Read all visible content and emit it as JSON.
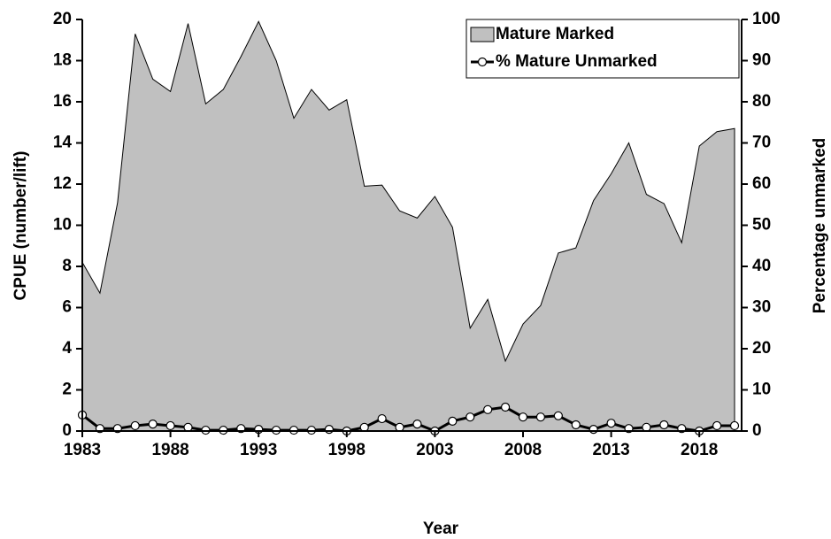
{
  "chart_data": {
    "type": "area",
    "x_label": "Year",
    "y_label": "CPUE (number/lift)",
    "y2_label": "Percentage unmarked",
    "x": [
      1983,
      1984,
      1985,
      1986,
      1987,
      1988,
      1989,
      1990,
      1991,
      1992,
      1993,
      1994,
      1995,
      1996,
      1997,
      1998,
      1999,
      2000,
      2001,
      2002,
      2003,
      2004,
      2005,
      2006,
      2007,
      2008,
      2009,
      2010,
      2011,
      2012,
      2013,
      2014,
      2015,
      2016,
      2017,
      2018,
      2019,
      2020
    ],
    "series": [
      {
        "name": "Mature Marked",
        "type": "area",
        "color": "#c0c0c0",
        "values": [
          8.2,
          6.7,
          11.1,
          19.3,
          17.1,
          16.5,
          19.8,
          15.9,
          16.6,
          18.2,
          19.9,
          18.0,
          15.2,
          16.6,
          15.6,
          16.1,
          11.9,
          11.95,
          10.7,
          10.35,
          11.4,
          9.9,
          5.0,
          6.4,
          3.4,
          5.2,
          6.1,
          8.65,
          8.9,
          11.2,
          12.5,
          14.0,
          11.5,
          11.05,
          9.15,
          13.85,
          14.55,
          14.7
        ]
      },
      {
        "name": "% Mature Unmarked",
        "type": "line",
        "axis": "y2",
        "color": "#000000",
        "values": [
          3.9,
          0.6,
          0.6,
          1.3,
          1.7,
          1.3,
          0.9,
          0.2,
          0.2,
          0.6,
          0.4,
          0.2,
          0.2,
          0.2,
          0.4,
          0,
          0.9,
          3.0,
          0.9,
          1.7,
          0,
          2.4,
          3.4,
          5.2,
          5.8,
          3.4,
          3.4,
          3.7,
          1.5,
          0.4,
          1.9,
          0.6,
          0.9,
          1.5,
          0.6,
          0,
          1.3,
          1.3
        ]
      }
    ],
    "xlim": [
      1983,
      2020.4
    ],
    "xticks": [
      1983,
      1988,
      1993,
      1998,
      2003,
      2008,
      2013,
      2018
    ],
    "ylim": [
      0,
      20
    ],
    "yticks": [
      0,
      2,
      4,
      6,
      8,
      10,
      12,
      14,
      16,
      18,
      20
    ],
    "y2lim": [
      0,
      100
    ],
    "y2ticks": [
      0,
      10,
      20,
      30,
      40,
      50,
      60,
      70,
      80,
      90,
      100
    ],
    "legend": "upper right"
  }
}
